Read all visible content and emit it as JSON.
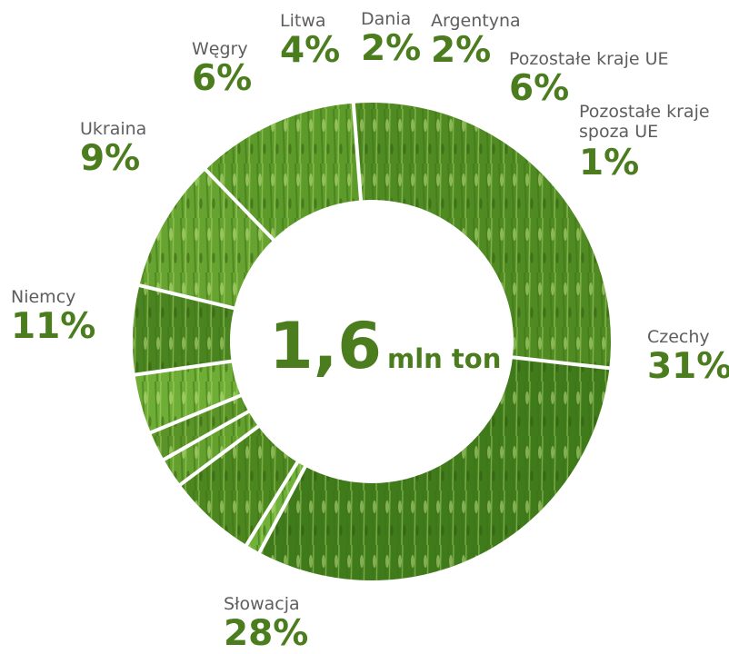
{
  "center": {
    "value": "1,6",
    "unit": "mln ton"
  },
  "colors": {
    "label": "#4b7d1f",
    "name": "#5e5e5e",
    "grass_dark": "#2e5a0f",
    "grass_light": "#a9d65a"
  },
  "chart_data": {
    "type": "pie",
    "categories": [
      "Czechy",
      "Słowacja",
      "Niemcy",
      "Ukraina",
      "Węgry",
      "Litwa",
      "Dania",
      "Argentyna",
      "Pozostałe kraje UE",
      "Pozostałe kraje spoza UE"
    ],
    "values": [
      31,
      28,
      11,
      9,
      6,
      4,
      2,
      2,
      6,
      1
    ],
    "labels": [
      "31%",
      "28%",
      "11%",
      "9%",
      "6%",
      "4%",
      "2%",
      "2%",
      "6%",
      "1%"
    ],
    "title": "",
    "center_text": "1,6 mln ton"
  },
  "labels": [
    {
      "name": "Czechy",
      "pct": "31%"
    },
    {
      "name": "Słowacja",
      "pct": "28%"
    },
    {
      "name": "Niemcy",
      "pct": "11%"
    },
    {
      "name": "Ukraina",
      "pct": "9%"
    },
    {
      "name": "Węgry",
      "pct": "6%"
    },
    {
      "name": "Litwa",
      "pct": "4%"
    },
    {
      "name": "Dania",
      "pct": "2%"
    },
    {
      "name": "Argentyna",
      "pct": "2%"
    },
    {
      "name": "Pozostałe kraje UE",
      "pct": "6%"
    },
    {
      "name": "Pozostałe kraje\nspoza UE",
      "pct": "1%"
    }
  ]
}
